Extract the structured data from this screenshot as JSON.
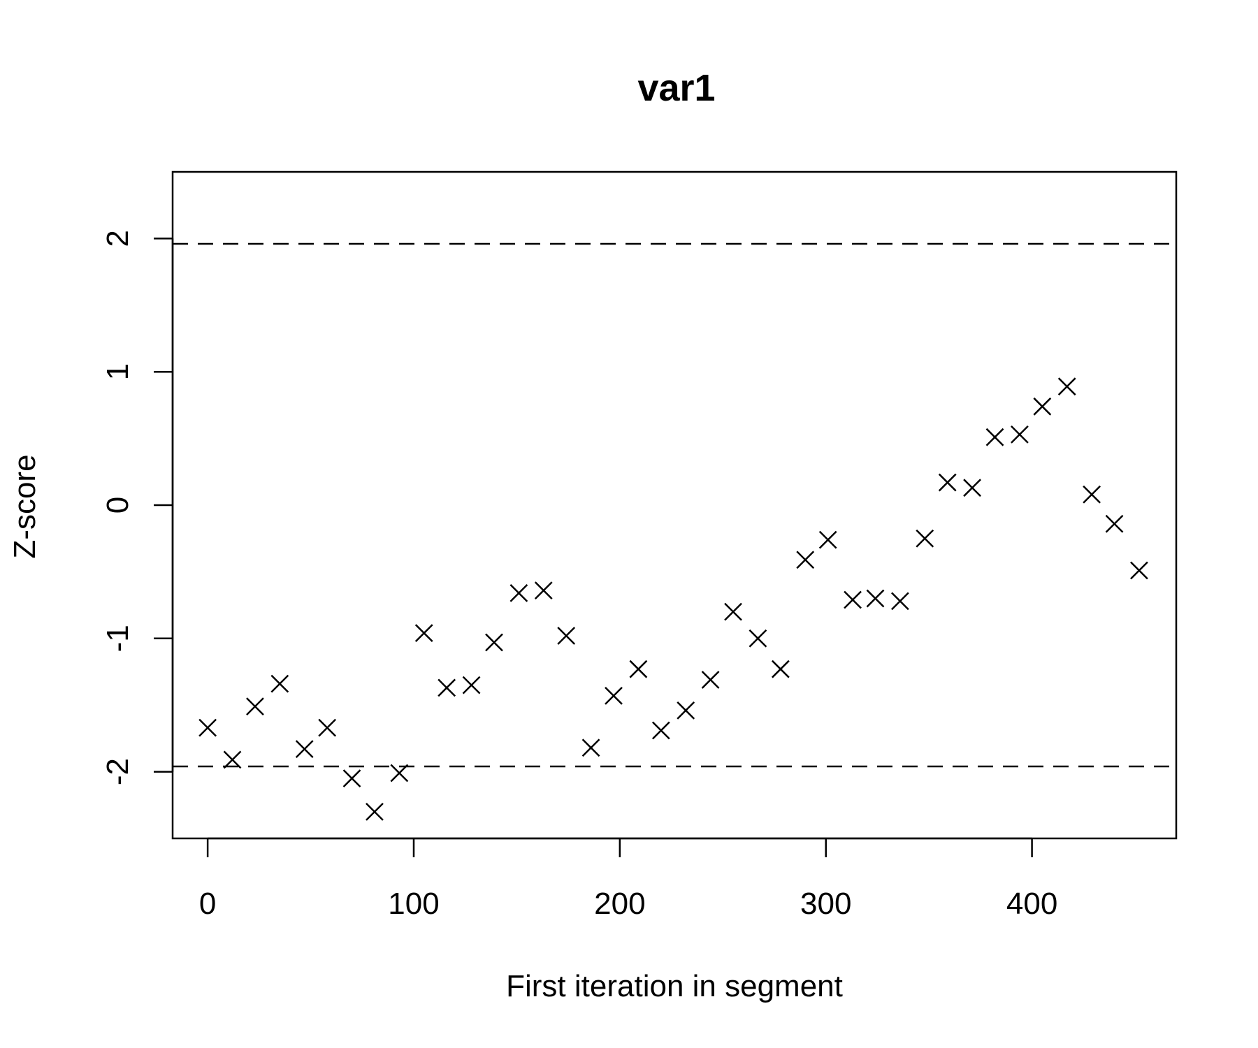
{
  "chart_data": {
    "type": "scatter",
    "title": "var1",
    "xlabel": "First iteration in segment",
    "ylabel": "Z-score",
    "xlim": [
      -17,
      470
    ],
    "ylim": [
      -2.5,
      2.5
    ],
    "x_ticks": [
      0,
      100,
      200,
      300,
      400
    ],
    "x_tick_labels": [
      "0",
      "100",
      "200",
      "300",
      "400"
    ],
    "y_ticks": [
      -2,
      -1,
      0,
      1,
      2
    ],
    "y_tick_labels": [
      "-2",
      "-1",
      "0",
      "1",
      "2"
    ],
    "reference_lines": [
      1.96,
      -1.96
    ],
    "grid": false,
    "marker": "x",
    "x": [
      0,
      12,
      23,
      35,
      47,
      58,
      70,
      81,
      93,
      105,
      116,
      128,
      139,
      151,
      163,
      174,
      186,
      197,
      209,
      220,
      232,
      244,
      255,
      267,
      278,
      290,
      301,
      313,
      324,
      336,
      348,
      359,
      371,
      382,
      394,
      405,
      417,
      429,
      440,
      452
    ],
    "y": [
      -1.67,
      -1.91,
      -1.51,
      -1.34,
      -1.83,
      -1.67,
      -2.05,
      -2.3,
      -2.01,
      -0.96,
      -1.37,
      -1.35,
      -1.03,
      -0.66,
      -0.64,
      -0.98,
      -1.82,
      -1.43,
      -1.23,
      -1.69,
      -1.54,
      -1.31,
      -0.8,
      -1.0,
      -1.23,
      -0.41,
      -0.26,
      -0.71,
      -0.7,
      -0.72,
      -0.25,
      0.17,
      0.13,
      0.51,
      0.53,
      0.74,
      0.89,
      0.08,
      -0.14,
      -0.49
    ]
  }
}
